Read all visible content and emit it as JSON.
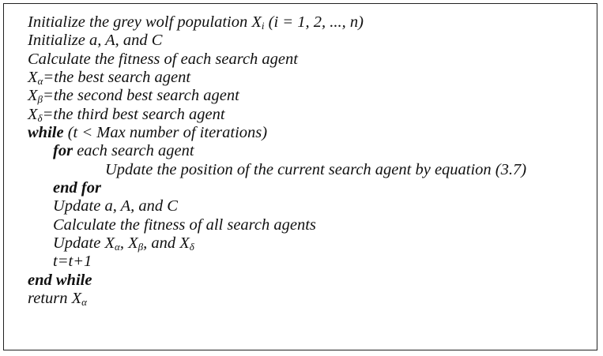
{
  "algorithm": {
    "l1": {
      "pre": "Initialize the grey wolf population X",
      "sub": "i",
      "post": " (i = 1, 2, ..., n)"
    },
    "l2": "Initialize a, A, and C",
    "l3": "Calculate the fitness of each search agent",
    "l4": {
      "var": "X",
      "sub": "α",
      "post": "=the best search agent"
    },
    "l5": {
      "var": "X",
      "sub": "β",
      "post": "=the second best search agent"
    },
    "l6": {
      "var": "X",
      "sub": "δ",
      "post": "=the third best search agent"
    },
    "l7": {
      "kw": "while",
      "post": " (t < Max number of iterations)"
    },
    "l8": {
      "kw": "for",
      "post": " each search agent"
    },
    "l9": "Update the position of the current search agent by equation (3.7)",
    "l10": "end for",
    "l11": "Update a, A, and C",
    "l12": "Calculate the fitness of all search agents",
    "l13": {
      "pre": "Update X",
      "sub1": "α",
      "mid1": ", X",
      "sub2": "β",
      "mid2": ", and X",
      "sub3": "δ"
    },
    "l14": "t=t+1",
    "l15": "end while",
    "l16": {
      "pre": "return X",
      "sub": "α"
    }
  }
}
